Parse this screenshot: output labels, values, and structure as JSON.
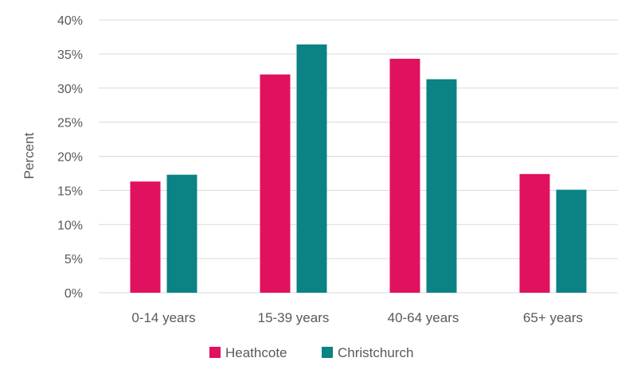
{
  "chart_data": {
    "type": "bar",
    "title": "",
    "xlabel": "",
    "ylabel": "Percent",
    "ylim": [
      0,
      40
    ],
    "ytick_step": 5,
    "ytick_suffix": "%",
    "grid": true,
    "legend_position": "bottom",
    "categories": [
      "0-14 years",
      "15-39 years",
      "40-64 years",
      "65+ years"
    ],
    "series": [
      {
        "name": "Heathcote",
        "color": "#E0115F",
        "values": [
          16.3,
          32.0,
          34.3,
          17.4
        ]
      },
      {
        "name": "Christchurch",
        "color": "#0B8284",
        "values": [
          17.3,
          36.4,
          31.3,
          15.1
        ]
      }
    ]
  }
}
